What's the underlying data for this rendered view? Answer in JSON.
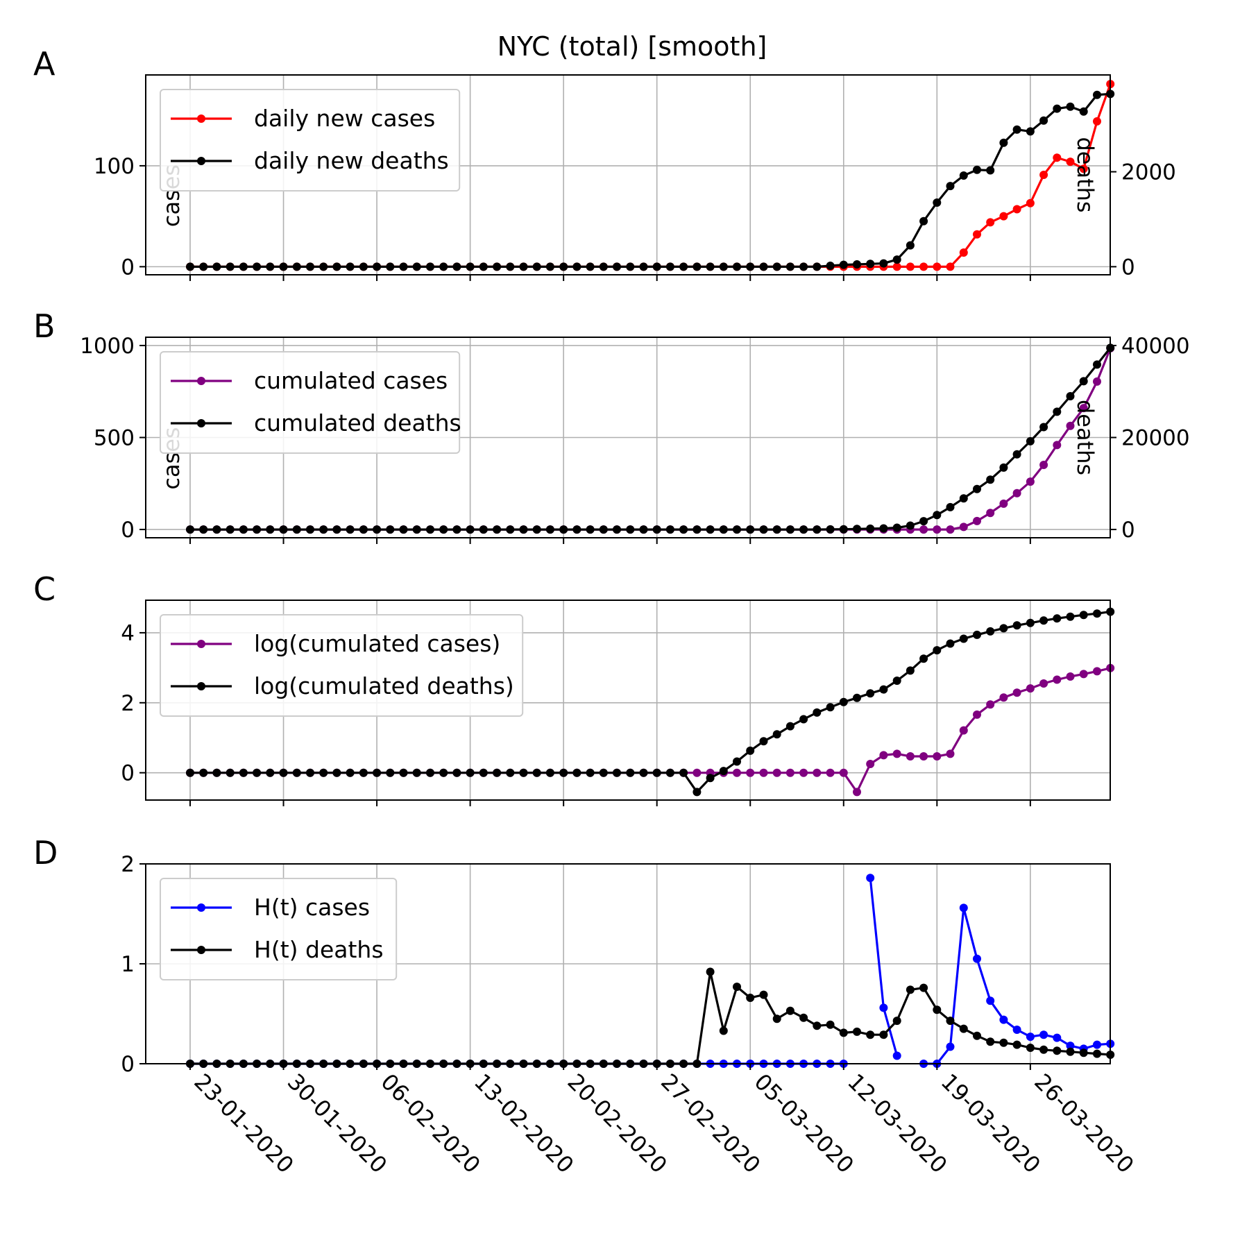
{
  "figure": {
    "title": "NYC (total) [smooth]",
    "x_tick_labels": [
      "23-01-2020",
      "30-01-2020",
      "06-02-2020",
      "13-02-2020",
      "20-02-2020",
      "27-02-2020",
      "05-03-2020",
      "12-03-2020",
      "19-03-2020",
      "26-03-2020"
    ]
  },
  "chart_data": [
    {
      "type": "line",
      "panel_label": "A",
      "x_start": "23-01-2020",
      "x_end": "01-04-2020",
      "ylabel": "cases",
      "ylabel_right": "deaths",
      "ylim": [
        -8,
        190
      ],
      "ylim_right": [
        -170,
        4040
      ],
      "yticks": [
        0,
        100
      ],
      "yticks_right": [
        0,
        2000
      ],
      "grid": true,
      "legend_position": "top-left",
      "series": [
        {
          "name": "daily new cases",
          "axis": "left",
          "color": "#ff0000",
          "start": "23-01-2020",
          "values": [
            0,
            0,
            0,
            0,
            0,
            0,
            0,
            0,
            0,
            0,
            0,
            0,
            0,
            0,
            0,
            0,
            0,
            0,
            0,
            0,
            0,
            0,
            0,
            0,
            0,
            0,
            0,
            0,
            0,
            0,
            0,
            0,
            0,
            0,
            0,
            0,
            0,
            0,
            0,
            0,
            0,
            0,
            0,
            0,
            0,
            0,
            0,
            0,
            0,
            0,
            0,
            0,
            0,
            0,
            0,
            0,
            0,
            0,
            14,
            32,
            44,
            50,
            57,
            63,
            91,
            108,
            104,
            97,
            144,
            181
          ]
        },
        {
          "name": "daily new deaths",
          "axis": "right",
          "color": "#000000",
          "start": "23-01-2020",
          "values": [
            0,
            0,
            0,
            0,
            0,
            0,
            0,
            0,
            0,
            0,
            0,
            0,
            0,
            0,
            0,
            0,
            0,
            0,
            0,
            0,
            0,
            0,
            0,
            0,
            0,
            0,
            0,
            0,
            0,
            0,
            0,
            0,
            0,
            0,
            0,
            0,
            0,
            0,
            0,
            0,
            0,
            0,
            0,
            0,
            0,
            0,
            0,
            0,
            20,
            40,
            50,
            60,
            70,
            150,
            450,
            960,
            1350,
            1700,
            1920,
            2040,
            2030,
            2610,
            2890,
            2850,
            3080,
            3330,
            3370,
            3270,
            3620,
            3640
          ]
        }
      ]
    },
    {
      "type": "line",
      "panel_label": "B",
      "x_start": "23-01-2020",
      "x_end": "01-04-2020",
      "ylabel": "cases",
      "ylabel_right": "deaths",
      "ylim": [
        -45,
        1045
      ],
      "ylim_right": [
        -1800,
        41800
      ],
      "yticks": [
        0,
        500,
        1000
      ],
      "yticks_right": [
        0,
        20000,
        40000
      ],
      "grid": true,
      "legend_position": "top-left",
      "series": [
        {
          "name": "cumulated cases",
          "axis": "left",
          "color": "#800080",
          "start": "23-01-2020",
          "values": [
            0,
            0,
            0,
            0,
            0,
            0,
            0,
            0,
            0,
            0,
            0,
            0,
            0,
            0,
            0,
            0,
            0,
            0,
            0,
            0,
            0,
            0,
            0,
            0,
            0,
            0,
            0,
            0,
            0,
            0,
            0,
            0,
            0,
            0,
            0,
            0,
            0,
            0,
            0,
            0,
            0,
            0,
            0,
            0,
            0,
            0,
            0,
            0,
            0,
            0,
            0,
            0,
            0,
            0,
            0,
            0,
            0,
            0,
            14,
            46,
            90,
            140,
            197,
            260,
            351,
            459,
            563,
            660,
            804,
            985
          ]
        },
        {
          "name": "cumulated deaths",
          "axis": "right",
          "color": "#000000",
          "start": "23-01-2020",
          "values": [
            0,
            0,
            0,
            0,
            0,
            0,
            0,
            0,
            0,
            0,
            0,
            0,
            0,
            0,
            0,
            0,
            0,
            0,
            0,
            0,
            0,
            0,
            0,
            0,
            0,
            0,
            0,
            0,
            0,
            0,
            0,
            0,
            0,
            0,
            0,
            0,
            0,
            0,
            0,
            0,
            0,
            0,
            0,
            0,
            0,
            0,
            0,
            0,
            20,
            60,
            110,
            170,
            240,
            390,
            840,
            1800,
            3150,
            4850,
            6770,
            8810,
            10840,
            13450,
            16340,
            19190,
            22270,
            25600,
            28970,
            32240,
            35860,
            39500
          ]
        }
      ]
    },
    {
      "type": "line",
      "panel_label": "C",
      "x_start": "23-01-2020",
      "x_end": "01-04-2020",
      "ylim": [
        -0.78,
        4.93
      ],
      "yticks": [
        0,
        2,
        4
      ],
      "grid": true,
      "legend_position": "top-left",
      "series": [
        {
          "name": "log(cumulated cases)",
          "color": "#800080",
          "start": "23-01-2020",
          "values": [
            0,
            0,
            0,
            0,
            0,
            0,
            0,
            0,
            0,
            0,
            0,
            0,
            0,
            0,
            0,
            0,
            0,
            0,
            0,
            0,
            0,
            0,
            0,
            0,
            0,
            0,
            0,
            0,
            0,
            0,
            0,
            0,
            0,
            0,
            0,
            0,
            0,
            0,
            0,
            0,
            0,
            0,
            0,
            0,
            0,
            0,
            0,
            0,
            0,
            0,
            -0.55,
            0.25,
            0.5,
            0.54,
            0.47,
            0.47,
            0.47,
            0.54,
            1.21,
            1.66,
            1.95,
            2.15,
            2.29,
            2.41,
            2.55,
            2.66,
            2.75,
            2.82,
            2.9,
            2.99
          ]
        },
        {
          "name": "log(cumulated deaths)",
          "color": "#000000",
          "start": "23-01-2020",
          "values": [
            0,
            0,
            0,
            0,
            0,
            0,
            0,
            0,
            0,
            0,
            0,
            0,
            0,
            0,
            0,
            0,
            0,
            0,
            0,
            0,
            0,
            0,
            0,
            0,
            0,
            0,
            0,
            0,
            0,
            0,
            0,
            0,
            0,
            0,
            0,
            0,
            0,
            0,
            -0.55,
            -0.15,
            0.05,
            0.32,
            0.63,
            0.9,
            1.1,
            1.33,
            1.53,
            1.72,
            1.87,
            2.02,
            2.14,
            2.27,
            2.38,
            2.63,
            2.92,
            3.26,
            3.5,
            3.69,
            3.83,
            3.94,
            4.04,
            4.13,
            4.21,
            4.28,
            4.35,
            4.41,
            4.46,
            4.51,
            4.55,
            4.6
          ]
        }
      ]
    },
    {
      "type": "line",
      "panel_label": "D",
      "x_start": "23-01-2020",
      "x_end": "01-04-2020",
      "ylim": [
        0,
        2
      ],
      "yticks": [
        0,
        1,
        2
      ],
      "grid": true,
      "legend_position": "top-left",
      "series": [
        {
          "name": "H(t) cases",
          "color": "#0000ff",
          "start": "23-01-2020",
          "values": [
            0,
            0,
            0,
            0,
            0,
            0,
            0,
            0,
            0,
            0,
            0,
            0,
            0,
            0,
            0,
            0,
            0,
            0,
            0,
            0,
            0,
            0,
            0,
            0,
            0,
            0,
            0,
            0,
            0,
            0,
            0,
            0,
            0,
            0,
            0,
            0,
            0,
            0,
            0,
            0,
            0,
            0,
            0,
            0,
            0,
            0,
            0,
            0,
            0,
            0,
            null,
            1.86,
            0.56,
            0.08,
            null,
            0,
            0,
            0.17,
            1.56,
            1.05,
            0.63,
            0.44,
            0.34,
            0.27,
            0.29,
            0.26,
            0.18,
            0.15,
            0.19,
            0.2
          ]
        },
        {
          "name": "H(t) deaths",
          "color": "#000000",
          "start": "23-01-2020",
          "values": [
            0,
            0,
            0,
            0,
            0,
            0,
            0,
            0,
            0,
            0,
            0,
            0,
            0,
            0,
            0,
            0,
            0,
            0,
            0,
            0,
            0,
            0,
            0,
            0,
            0,
            0,
            0,
            0,
            0,
            0,
            0,
            0,
            0,
            0,
            0,
            0,
            0,
            0,
            0,
            0.92,
            0.33,
            0.77,
            0.66,
            0.69,
            0.45,
            0.53,
            0.46,
            0.38,
            0.39,
            0.31,
            0.32,
            0.29,
            0.29,
            0.43,
            0.74,
            0.76,
            0.54,
            0.43,
            0.35,
            0.28,
            0.22,
            0.21,
            0.19,
            0.16,
            0.14,
            0.13,
            0.12,
            0.11,
            0.1,
            0.09
          ]
        }
      ]
    }
  ]
}
